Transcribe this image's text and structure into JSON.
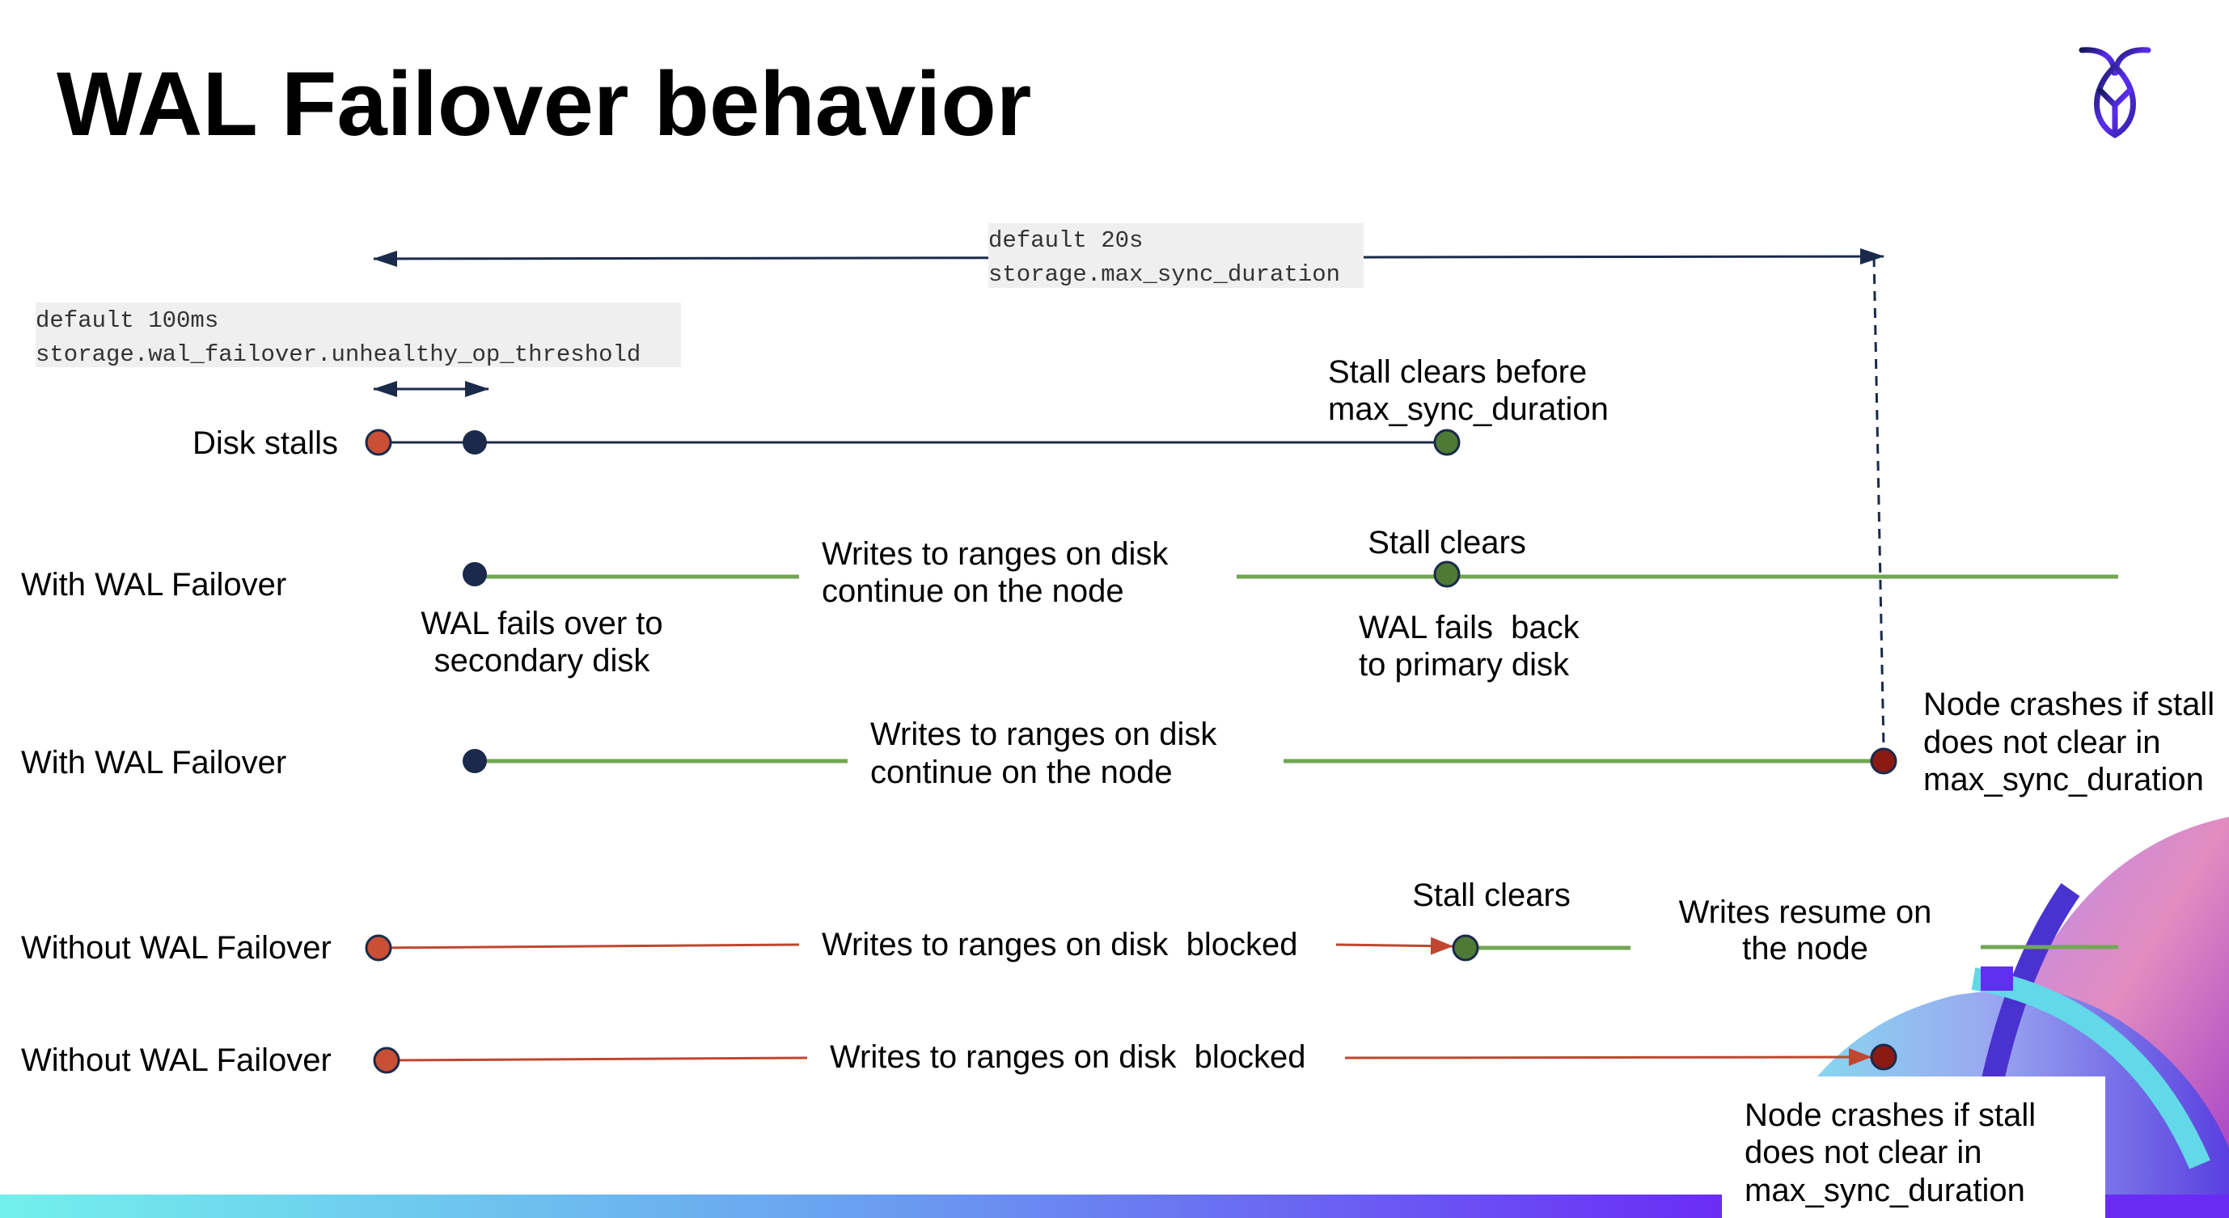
{
  "title": "WAL Failover behavior",
  "settings": {
    "max_sync": {
      "default": "default 20s",
      "name": "storage.max_sync_duration"
    },
    "threshold": {
      "default": "default 100ms",
      "name": "storage.wal_failover.unhealthy_op_threshold"
    }
  },
  "rows": {
    "disk_stalls": {
      "label": "Disk stalls",
      "note_line1": "Stall clears before",
      "note_line2": "max_sync_duration"
    },
    "with_failover_clears": {
      "label": "With WAL Failover",
      "writes_line1": "Writes to ranges on disk",
      "writes_line2": "continue on the node",
      "stall_clears": "Stall clears",
      "fail_over_line1": "WAL fails over to",
      "fail_over_line2": "secondary disk",
      "fail_back_line1": "WAL fails  back",
      "fail_back_line2": "to primary disk"
    },
    "with_failover_crash": {
      "label": "With WAL Failover",
      "writes_line1": "Writes to ranges on disk",
      "writes_line2": "continue on the node",
      "crash_line1": "Node crashes if stall",
      "crash_line2": "does not clear in",
      "crash_line3": "max_sync_duration"
    },
    "without_failover_clears": {
      "label": "Without WAL Failover",
      "blocked": "Writes to ranges on disk  blocked",
      "stall_clears": "Stall clears",
      "resume_line1": "Writes resume on",
      "resume_line2": "the node"
    },
    "without_failover_crash": {
      "label": "Without WAL Failover",
      "blocked": "Writes to ranges on disk  blocked",
      "crash_line1": "Node crashes if stall",
      "crash_line2": "does not clear in",
      "crash_line3": "max_sync_duration"
    }
  },
  "colors": {
    "navy": "#1b2a4a",
    "stall_start": "#c94f35",
    "cleared": "#4e7a35",
    "crash": "#8b1a14",
    "ok_line": "#72a653",
    "blocked_line": "#c0462f"
  },
  "logo": "cockroach-labs-logo"
}
